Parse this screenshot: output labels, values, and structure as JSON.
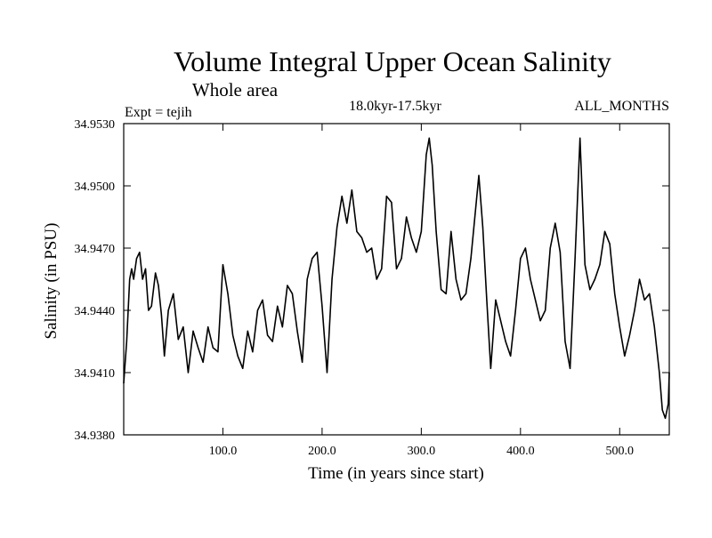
{
  "chart_data": {
    "type": "line",
    "title": "Volume Integral Upper Ocean Salinity",
    "subtitle": "Whole area",
    "experiment_label": "Expt = tejih",
    "period_label": "18.0kyr-17.5kyr",
    "season_label": "ALL_MONTHS",
    "xlabel": "Time (in years since start)",
    "ylabel": "Salinity (in PSU)",
    "xlim": [
      0,
      550
    ],
    "ylim": [
      34.938,
      34.953
    ],
    "xticks": [
      100,
      200,
      300,
      400,
      500
    ],
    "xtick_labels": [
      "100.0",
      "200.0",
      "300.0",
      "400.0",
      "500.0"
    ],
    "yticks": [
      34.938,
      34.941,
      34.944,
      34.947,
      34.95,
      34.953
    ],
    "ytick_labels": [
      "34.9380",
      "34.9410",
      "34.9440",
      "34.9470",
      "34.9500",
      "34.9530"
    ],
    "grid": false,
    "line_color": "#000000",
    "series": [
      {
        "name": "Salinity",
        "x": [
          0,
          3,
          6,
          8,
          10,
          13,
          16,
          19,
          22,
          25,
          28,
          32,
          35,
          38,
          41,
          45,
          50,
          55,
          60,
          65,
          70,
          75,
          80,
          85,
          90,
          95,
          100,
          105,
          110,
          115,
          120,
          125,
          130,
          135,
          140,
          145,
          150,
          155,
          160,
          165,
          170,
          175,
          180,
          185,
          190,
          195,
          200,
          205,
          210,
          215,
          220,
          225,
          230,
          235,
          240,
          245,
          250,
          255,
          260,
          265,
          270,
          275,
          280,
          285,
          290,
          295,
          300,
          305,
          308,
          311,
          315,
          320,
          325,
          330,
          335,
          340,
          345,
          350,
          355,
          358,
          362,
          366,
          370,
          375,
          380,
          385,
          390,
          395,
          400,
          405,
          410,
          415,
          420,
          425,
          430,
          435,
          440,
          445,
          450,
          455,
          460,
          465,
          470,
          475,
          480,
          485,
          490,
          495,
          500,
          505,
          510,
          515,
          520,
          525,
          530,
          535,
          540,
          543,
          546,
          549,
          550
        ],
        "values": [
          34.9405,
          34.9425,
          34.9455,
          34.946,
          34.9455,
          34.9465,
          34.9468,
          34.9455,
          34.946,
          34.944,
          34.9442,
          34.9458,
          34.9452,
          34.9438,
          34.9418,
          34.944,
          34.9448,
          34.9426,
          34.9432,
          34.941,
          34.943,
          34.9422,
          34.9415,
          34.9432,
          34.9422,
          34.942,
          34.9462,
          34.9448,
          34.9428,
          34.9418,
          34.9412,
          34.943,
          34.942,
          34.944,
          34.9445,
          34.9428,
          34.9425,
          34.9442,
          34.9432,
          34.9452,
          34.9448,
          34.943,
          34.9415,
          34.9455,
          34.9465,
          34.9468,
          34.9442,
          34.941,
          34.9455,
          34.948,
          34.9495,
          34.9482,
          34.9498,
          34.9478,
          34.9475,
          34.9468,
          34.947,
          34.9455,
          34.946,
          34.9495,
          34.9492,
          34.946,
          34.9465,
          34.9485,
          34.9475,
          34.9468,
          34.9478,
          34.9515,
          34.9523,
          34.951,
          34.9478,
          34.945,
          34.9448,
          34.9478,
          34.9455,
          34.9445,
          34.9448,
          34.9465,
          34.949,
          34.9505,
          34.948,
          34.9445,
          34.9412,
          34.9445,
          34.9435,
          34.9425,
          34.9418,
          34.944,
          34.9465,
          34.947,
          34.9455,
          34.9445,
          34.9435,
          34.944,
          34.947,
          34.9482,
          34.9468,
          34.9425,
          34.9412,
          34.9465,
          34.9523,
          34.9462,
          34.945,
          34.9455,
          34.9462,
          34.9478,
          34.9472,
          34.9448,
          34.9432,
          34.9418,
          34.9428,
          34.944,
          34.9455,
          34.9445,
          34.9448,
          34.9432,
          34.941,
          34.9392,
          34.9388,
          34.9395,
          34.941
        ]
      }
    ]
  }
}
